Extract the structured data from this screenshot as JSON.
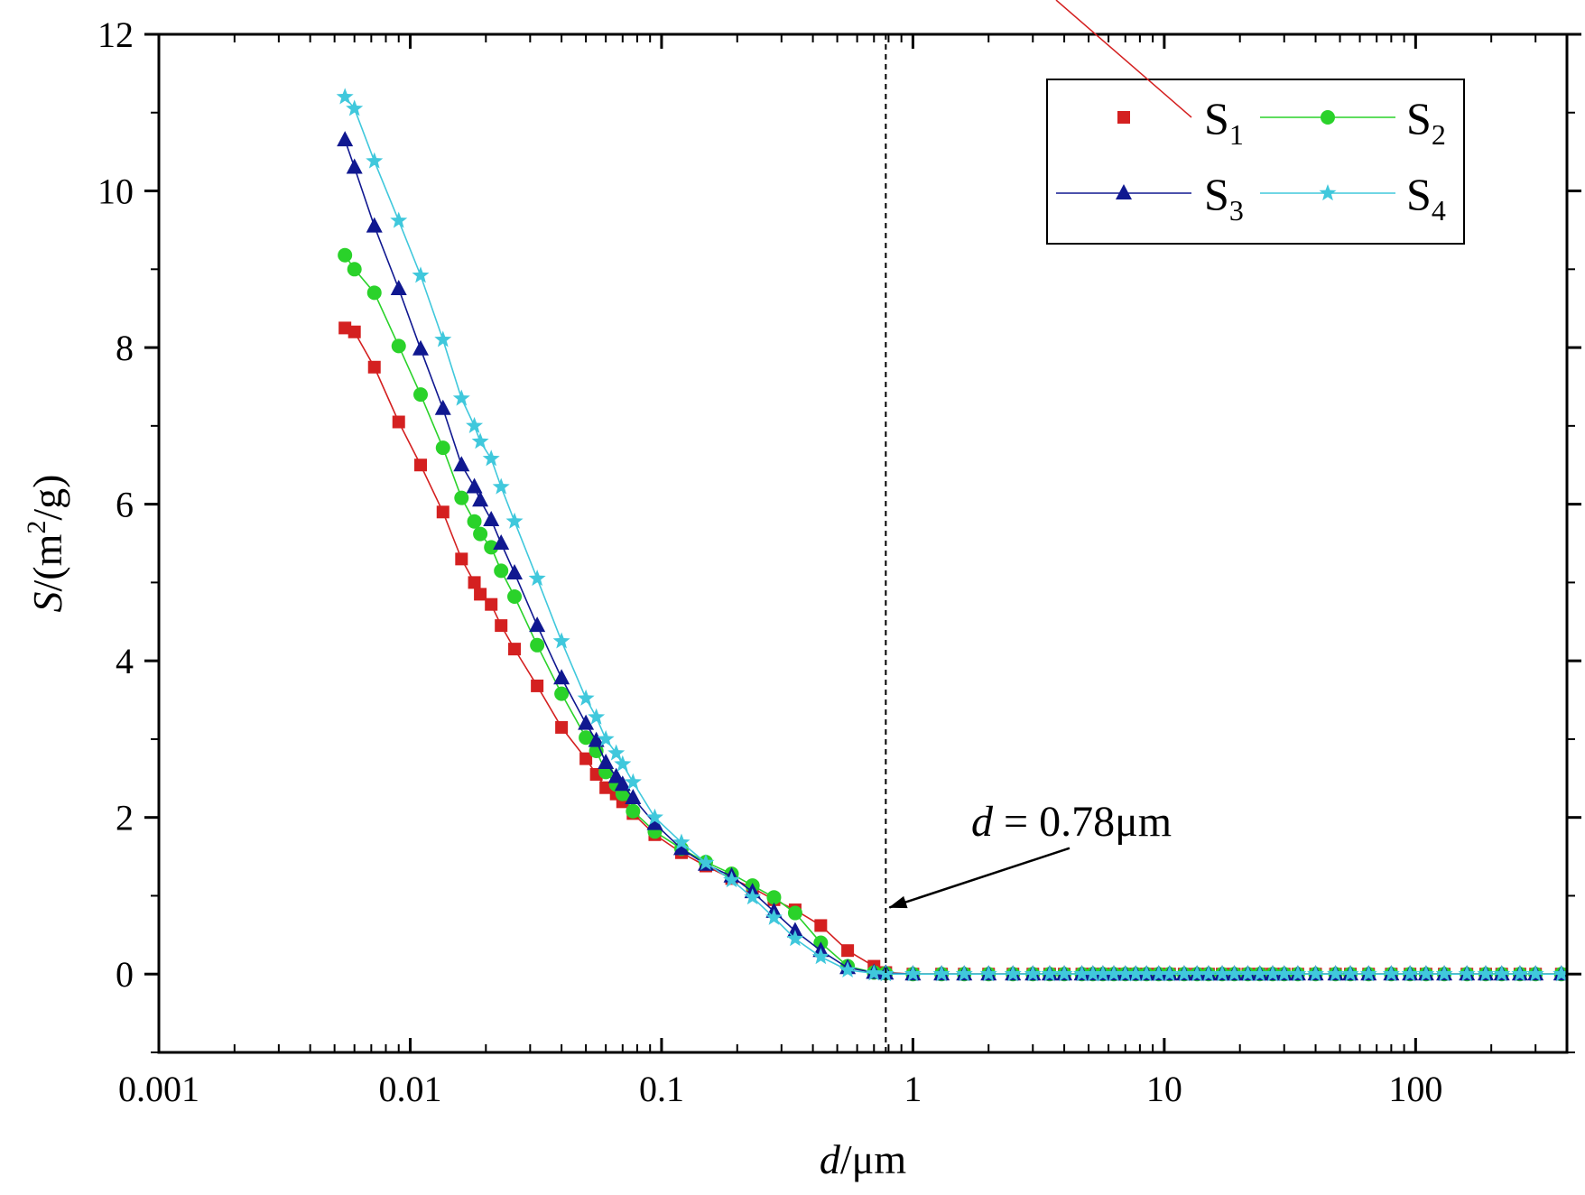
{
  "chart_data": {
    "type": "line",
    "title": "",
    "xlabel": {
      "italic": "d",
      "rest": "/μm"
    },
    "ylabel": {
      "italic": "S",
      "pre": "/(m",
      "sup": "2",
      "post": "/g)"
    },
    "xscale": "log",
    "xlim": [
      0.001,
      400
    ],
    "ylim": [
      -1,
      12
    ],
    "x_ticks": [
      0.001,
      0.01,
      0.1,
      1,
      10,
      100
    ],
    "x_tick_labels": [
      "0.001",
      "0.01",
      "0.1",
      "1",
      "10",
      "100"
    ],
    "y_ticks": [
      0,
      2,
      4,
      6,
      8,
      10,
      12
    ],
    "y_tick_labels": [
      "0",
      "2",
      "4",
      "6",
      "8",
      "10",
      "12"
    ],
    "legend": {
      "position": "top-right",
      "entries": [
        {
          "base": "S",
          "sub": "1"
        },
        {
          "base": "S",
          "sub": "2"
        },
        {
          "base": "S",
          "sub": "3"
        },
        {
          "base": "S",
          "sub": "4"
        }
      ]
    },
    "reference_line": {
      "x": 0.78,
      "style": "dashed"
    },
    "annotation": {
      "italic": "d",
      "text": " = 0.78μm",
      "arrow_target": [
        0.78,
        0.85
      ],
      "text_anchor": [
        4.2,
        2.0
      ]
    },
    "series": [
      {
        "name": "S1",
        "color": "#d42020",
        "marker": "square",
        "x": [
          0.0055,
          0.006,
          0.0072,
          0.009,
          0.011,
          0.0135,
          0.016,
          0.018,
          0.019,
          0.021,
          0.023,
          0.026,
          0.032,
          0.04,
          0.05,
          0.055,
          0.06,
          0.066,
          0.07,
          0.077,
          0.094,
          0.12,
          0.15,
          0.19,
          0.23,
          0.28,
          0.34,
          0.43,
          0.55,
          0.7,
          0.78,
          1,
          1.3,
          1.6,
          2,
          2.5,
          3,
          3.5,
          4,
          4.7,
          5.2,
          5.7,
          6.3,
          7,
          7.7,
          8.5,
          9.5,
          10.5,
          12,
          13.5,
          15,
          17,
          19,
          21.5,
          24,
          27,
          30,
          34,
          40,
          48,
          55,
          65,
          80,
          95,
          110,
          130,
          160,
          190,
          220,
          260,
          300,
          380
        ],
        "y": [
          8.25,
          8.2,
          7.75,
          7.05,
          6.5,
          5.9,
          5.3,
          5.0,
          4.85,
          4.72,
          4.45,
          4.15,
          3.68,
          3.15,
          2.75,
          2.55,
          2.38,
          2.3,
          2.2,
          2.05,
          1.78,
          1.55,
          1.38,
          1.22,
          1.1,
          0.95,
          0.82,
          0.62,
          0.3,
          0.1,
          0.02,
          0.0,
          0.0,
          0.0,
          0.0,
          0.0,
          0.0,
          0.0,
          0.0,
          0.0,
          0.0,
          0.0,
          0.0,
          0.0,
          0.0,
          0.0,
          0.0,
          0.0,
          0.0,
          0.0,
          0.0,
          0.0,
          0.0,
          0.0,
          0.0,
          0.0,
          0.0,
          0.0,
          0.0,
          0.0,
          0.0,
          0.0,
          0.0,
          0.0,
          0.0,
          0.0,
          0.0,
          0.0,
          0.0,
          0.0,
          0.0,
          0.0
        ]
      },
      {
        "name": "S2",
        "color": "#2ad22a",
        "marker": "circle",
        "x": [
          0.0055,
          0.006,
          0.0072,
          0.009,
          0.011,
          0.0135,
          0.016,
          0.018,
          0.019,
          0.021,
          0.023,
          0.026,
          0.032,
          0.04,
          0.05,
          0.055,
          0.06,
          0.066,
          0.07,
          0.077,
          0.094,
          0.12,
          0.15,
          0.19,
          0.23,
          0.28,
          0.34,
          0.43,
          0.55,
          0.7,
          0.78,
          1,
          1.3,
          1.6,
          2,
          2.5,
          3,
          3.5,
          4,
          4.7,
          5.2,
          5.7,
          6.3,
          7,
          7.7,
          8.5,
          9.5,
          10.5,
          12,
          13.5,
          15,
          17,
          19,
          21.5,
          24,
          27,
          30,
          34,
          40,
          48,
          55,
          65,
          80,
          95,
          110,
          130,
          160,
          190,
          220,
          260,
          300,
          380
        ],
        "y": [
          9.18,
          9.0,
          8.7,
          8.02,
          7.4,
          6.72,
          6.08,
          5.78,
          5.62,
          5.45,
          5.15,
          4.82,
          4.2,
          3.58,
          3.02,
          2.85,
          2.58,
          2.42,
          2.3,
          2.08,
          1.82,
          1.6,
          1.43,
          1.28,
          1.13,
          0.98,
          0.78,
          0.4,
          0.1,
          0.02,
          0.01,
          0.0,
          0.0,
          0.0,
          0.0,
          0.0,
          0.0,
          0.0,
          0.0,
          0.0,
          0.0,
          0.0,
          0.0,
          0.0,
          0.0,
          0.0,
          0.0,
          0.0,
          0.0,
          0.0,
          0.0,
          0.0,
          0.0,
          0.0,
          0.0,
          0.0,
          0.0,
          0.0,
          0.0,
          0.0,
          0.0,
          0.0,
          0.0,
          0.0,
          0.0,
          0.0,
          0.0,
          0.0,
          0.0,
          0.0,
          0.0,
          0.0
        ]
      },
      {
        "name": "S3",
        "color": "#101890",
        "marker": "triangle",
        "x": [
          0.0055,
          0.006,
          0.0072,
          0.009,
          0.011,
          0.0135,
          0.016,
          0.018,
          0.019,
          0.021,
          0.023,
          0.026,
          0.032,
          0.04,
          0.05,
          0.055,
          0.06,
          0.066,
          0.07,
          0.077,
          0.094,
          0.12,
          0.15,
          0.19,
          0.23,
          0.28,
          0.34,
          0.43,
          0.55,
          0.7,
          0.78,
          1,
          1.3,
          1.6,
          2,
          2.5,
          3,
          3.5,
          4,
          4.7,
          5.2,
          5.7,
          6.3,
          7,
          7.7,
          8.5,
          9.5,
          10.5,
          12,
          13.5,
          15,
          17,
          19,
          21.5,
          24,
          27,
          30,
          34,
          40,
          48,
          55,
          65,
          80,
          95,
          110,
          130,
          160,
          190,
          220,
          260,
          300,
          380
        ],
        "y": [
          10.65,
          10.3,
          9.55,
          8.75,
          7.98,
          7.22,
          6.5,
          6.22,
          6.05,
          5.8,
          5.5,
          5.12,
          4.45,
          3.78,
          3.2,
          2.98,
          2.7,
          2.52,
          2.42,
          2.25,
          1.92,
          1.6,
          1.4,
          1.25,
          1.05,
          0.8,
          0.55,
          0.3,
          0.08,
          0.02,
          0.01,
          0.0,
          0.0,
          0.0,
          0.0,
          0.0,
          0.0,
          0.0,
          0.0,
          0.0,
          0.0,
          0.0,
          0.0,
          0.0,
          0.0,
          0.0,
          0.0,
          0.0,
          0.0,
          0.0,
          0.0,
          0.0,
          0.0,
          0.0,
          0.0,
          0.0,
          0.0,
          0.0,
          0.0,
          0.0,
          0.0,
          0.0,
          0.0,
          0.0,
          0.0,
          0.0,
          0.0,
          0.0,
          0.0,
          0.0,
          0.0,
          0.0
        ]
      },
      {
        "name": "S4",
        "color": "#40c8dc",
        "marker": "star",
        "x": [
          0.0055,
          0.006,
          0.0072,
          0.009,
          0.011,
          0.0135,
          0.016,
          0.018,
          0.019,
          0.021,
          0.023,
          0.026,
          0.032,
          0.04,
          0.05,
          0.055,
          0.06,
          0.066,
          0.07,
          0.077,
          0.094,
          0.12,
          0.15,
          0.19,
          0.23,
          0.28,
          0.34,
          0.43,
          0.55,
          0.7,
          0.78,
          1,
          1.3,
          1.6,
          2,
          2.5,
          3,
          3.5,
          4,
          4.7,
          5.2,
          5.7,
          6.3,
          7,
          7.7,
          8.5,
          9.5,
          10.5,
          12,
          13.5,
          15,
          17,
          19,
          21.5,
          24,
          27,
          30,
          34,
          40,
          48,
          55,
          65,
          80,
          95,
          110,
          130,
          160,
          190,
          220,
          260,
          300,
          380
        ],
        "y": [
          11.2,
          11.05,
          10.38,
          9.62,
          8.92,
          8.1,
          7.35,
          7.0,
          6.8,
          6.58,
          6.22,
          5.78,
          5.05,
          4.25,
          3.52,
          3.28,
          3.0,
          2.82,
          2.68,
          2.45,
          2.0,
          1.68,
          1.42,
          1.2,
          0.98,
          0.72,
          0.45,
          0.22,
          0.05,
          0.01,
          0.0,
          0.0,
          0.0,
          0.0,
          0.0,
          0.0,
          0.0,
          0.0,
          0.0,
          0.0,
          0.0,
          0.0,
          0.0,
          0.0,
          0.0,
          0.0,
          0.0,
          0.0,
          0.0,
          0.0,
          0.0,
          0.0,
          0.0,
          0.0,
          0.0,
          0.0,
          0.0,
          0.0,
          0.0,
          0.0,
          0.0,
          0.0,
          0.0,
          0.0,
          0.0,
          0.0,
          0.0,
          0.0,
          0.0,
          0.0,
          0.0,
          0.0
        ]
      }
    ]
  }
}
